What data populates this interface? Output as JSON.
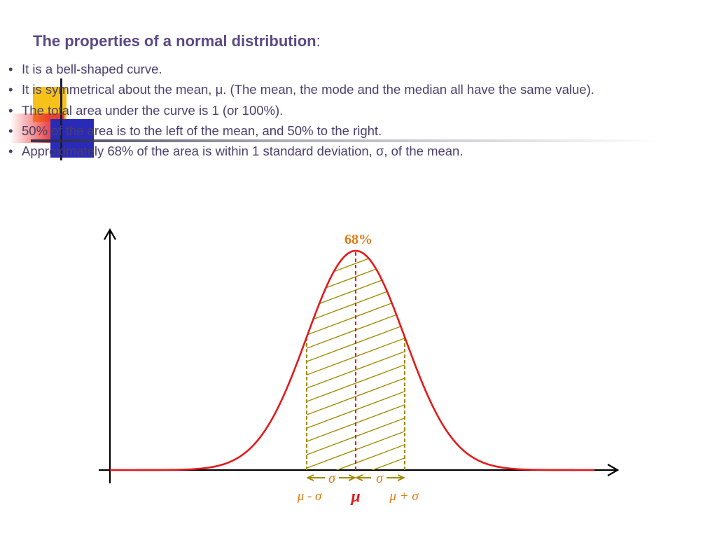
{
  "slide": {
    "title": "The properties of a normal distribution",
    "title_suffix": ":",
    "bullets": [
      "It is a bell-shaped curve.",
      "It is symmetrical about the mean, μ.  (The mean, the mode and the median all have the same value).",
      "The total area under the curve is 1 (or 100%).",
      "50% of the area is to the left of the mean, and 50% to the right.",
      "Approximately 68% of the area is within 1 standard deviation, σ, of the mean."
    ]
  },
  "diagram": {
    "area_label": "68%",
    "sigma_left": "σ",
    "sigma_right": "σ",
    "label_minus": "μ - σ",
    "label_mean": "μ",
    "label_plus": "μ + σ",
    "colors": {
      "curve": "#e31a1c",
      "shading": "#a08a00",
      "area_label": "#e07a10",
      "axis": "#000000",
      "title": "#5b4a86",
      "text": "#4a3f6b"
    }
  }
}
